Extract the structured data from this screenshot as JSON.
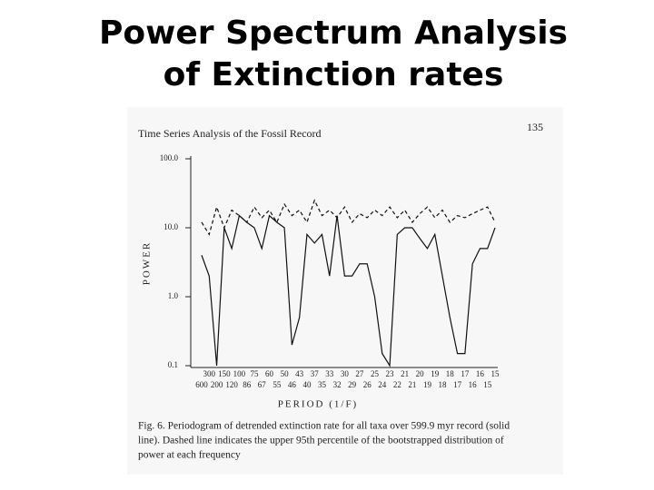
{
  "title_lines": [
    "Power Spectrum Analysis",
    "of Extinction rates"
  ],
  "chart_data": {
    "type": "line",
    "title": "Time Series Analysis of the Fossil Record",
    "page_number": "135",
    "y_label": "POWER",
    "x_label": "PERIOD (1/F)",
    "log_y": true,
    "ylim": [
      0.1,
      100
    ],
    "yticks": [
      0.1,
      {
        "value": 1,
        "label": "1.0"
      },
      {
        "value": 10,
        "label": "10.0"
      },
      {
        "value": 100,
        "label": "100.0"
      }
    ],
    "categories": [
      "600",
      "300",
      "200",
      "150",
      "120",
      "100",
      "86",
      "75",
      "67",
      "60",
      "55",
      "50",
      "46",
      "43",
      "40",
      "37",
      "35",
      "33",
      "32",
      "30",
      "29",
      "27",
      "26",
      "25",
      "24",
      "23",
      "22",
      "21",
      "21",
      "20",
      "19",
      "19",
      "18",
      "18",
      "17",
      "17",
      "16",
      "16",
      "15",
      "15"
    ],
    "series": [
      {
        "color": "#111111",
        "style": "solid",
        "values": [
          4,
          2,
          0.1,
          10,
          5,
          15,
          12,
          10,
          5,
          15,
          12,
          10,
          0.2,
          0.5,
          8,
          6,
          8,
          2,
          15,
          2,
          2,
          3,
          3,
          1,
          0.15,
          0.1,
          8,
          10,
          10,
          7,
          5,
          8,
          2,
          0.5,
          0.15,
          0.15,
          3,
          5,
          5,
          10
        ]
      },
      {
        "color": "#111111",
        "style": "dashed",
        "values": [
          12,
          8,
          20,
          10,
          18,
          15,
          12,
          20,
          14,
          18,
          12,
          22,
          15,
          18,
          12,
          25,
          15,
          18,
          14,
          20,
          12,
          16,
          14,
          18,
          15,
          20,
          14,
          18,
          12,
          16,
          20,
          14,
          18,
          12,
          15,
          14,
          16,
          18,
          20,
          12
        ]
      }
    ],
    "caption_lines": [
      "Fig. 6. Periodogram of detrended extinction rate for all taxa over 599.9 myr record (solid",
      "line). Dashed line indicates the upper 95th percentile of the bootstrapped distribution of",
      "power at each frequency"
    ]
  }
}
